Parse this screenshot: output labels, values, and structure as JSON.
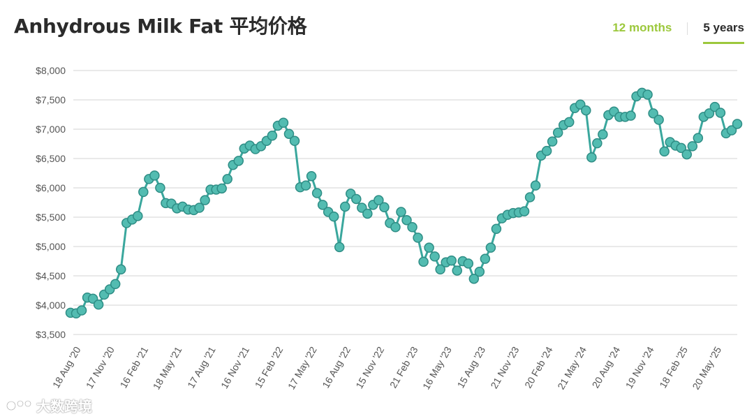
{
  "title": "Anhydrous Milk Fat 平均价格",
  "range_toggle": {
    "months_label": "12 months",
    "years_label": "5 years",
    "active": "5 years"
  },
  "watermark": {
    "text": "大数跨境"
  },
  "colors": {
    "line": "#3aa79d",
    "marker_fill": "#53bcb1",
    "marker_stroke": "#2e8d85",
    "accent": "#9cc83c",
    "grid": "#e2e2e2"
  },
  "chart_data": {
    "type": "line",
    "title": "Anhydrous Milk Fat 平均价格",
    "xlabel": "",
    "ylabel": "",
    "ylim": [
      3500,
      8000
    ],
    "yticks": [
      3500,
      4000,
      4500,
      5000,
      5500,
      6000,
      6500,
      7000,
      7500,
      8000
    ],
    "ytick_labels": [
      "$3,500",
      "$4,000",
      "$4,500",
      "$5,000",
      "$5,500",
      "$6,000",
      "$6,500",
      "$7,000",
      "$7,500",
      "$8,000"
    ],
    "xtick_labels": [
      "18 Aug '20",
      "17 Nov '20",
      "16 Feb '21",
      "18 May '21",
      "17 Aug '21",
      "16 Nov '21",
      "15 Feb '22",
      "17 May '22",
      "16 Aug '22",
      "15 Nov '22",
      "21 Feb '23",
      "16 May '23",
      "15 Aug '23",
      "21 Nov '23",
      "20 Feb '24",
      "21 May '24",
      "20 Aug '24",
      "19 Nov '24",
      "18 Feb '25",
      "20 May '25"
    ],
    "grid": true,
    "legend": "none",
    "series": [
      {
        "values": [
          3870,
          3860,
          3910,
          4130,
          4110,
          4010,
          4180,
          4270,
          4360,
          4610,
          5400,
          5460,
          5520,
          5930,
          6150,
          6210,
          6000,
          5740,
          5730,
          5650,
          5680,
          5630,
          5620,
          5660,
          5790,
          5970,
          5970,
          5990,
          6150,
          6390,
          6460,
          6670,
          6720,
          6660,
          6710,
          6800,
          6890,
          7060,
          7110,
          6920,
          6800,
          6010,
          6040,
          6200,
          5910,
          5710,
          5590,
          5510,
          4990,
          5680,
          5900,
          5810,
          5660,
          5560,
          5710,
          5790,
          5670,
          5400,
          5330,
          5590,
          5450,
          5330,
          5150,
          4740,
          4980,
          4830,
          4610,
          4730,
          4760,
          4590,
          4750,
          4710,
          4450,
          4570,
          4790,
          4980,
          5300,
          5480,
          5540,
          5570,
          5580,
          5600,
          5840,
          6040,
          6550,
          6630,
          6790,
          6940,
          7070,
          7120,
          7360,
          7420,
          7320,
          6520,
          6760,
          6910,
          7240,
          7300,
          7210,
          7210,
          7230,
          7560,
          7620,
          7590,
          7270,
          7160,
          6620,
          6780,
          6720,
          6680,
          6570,
          6710,
          6850,
          7210,
          7270,
          7380,
          7280,
          6930,
          6980,
          7090
        ]
      }
    ]
  }
}
